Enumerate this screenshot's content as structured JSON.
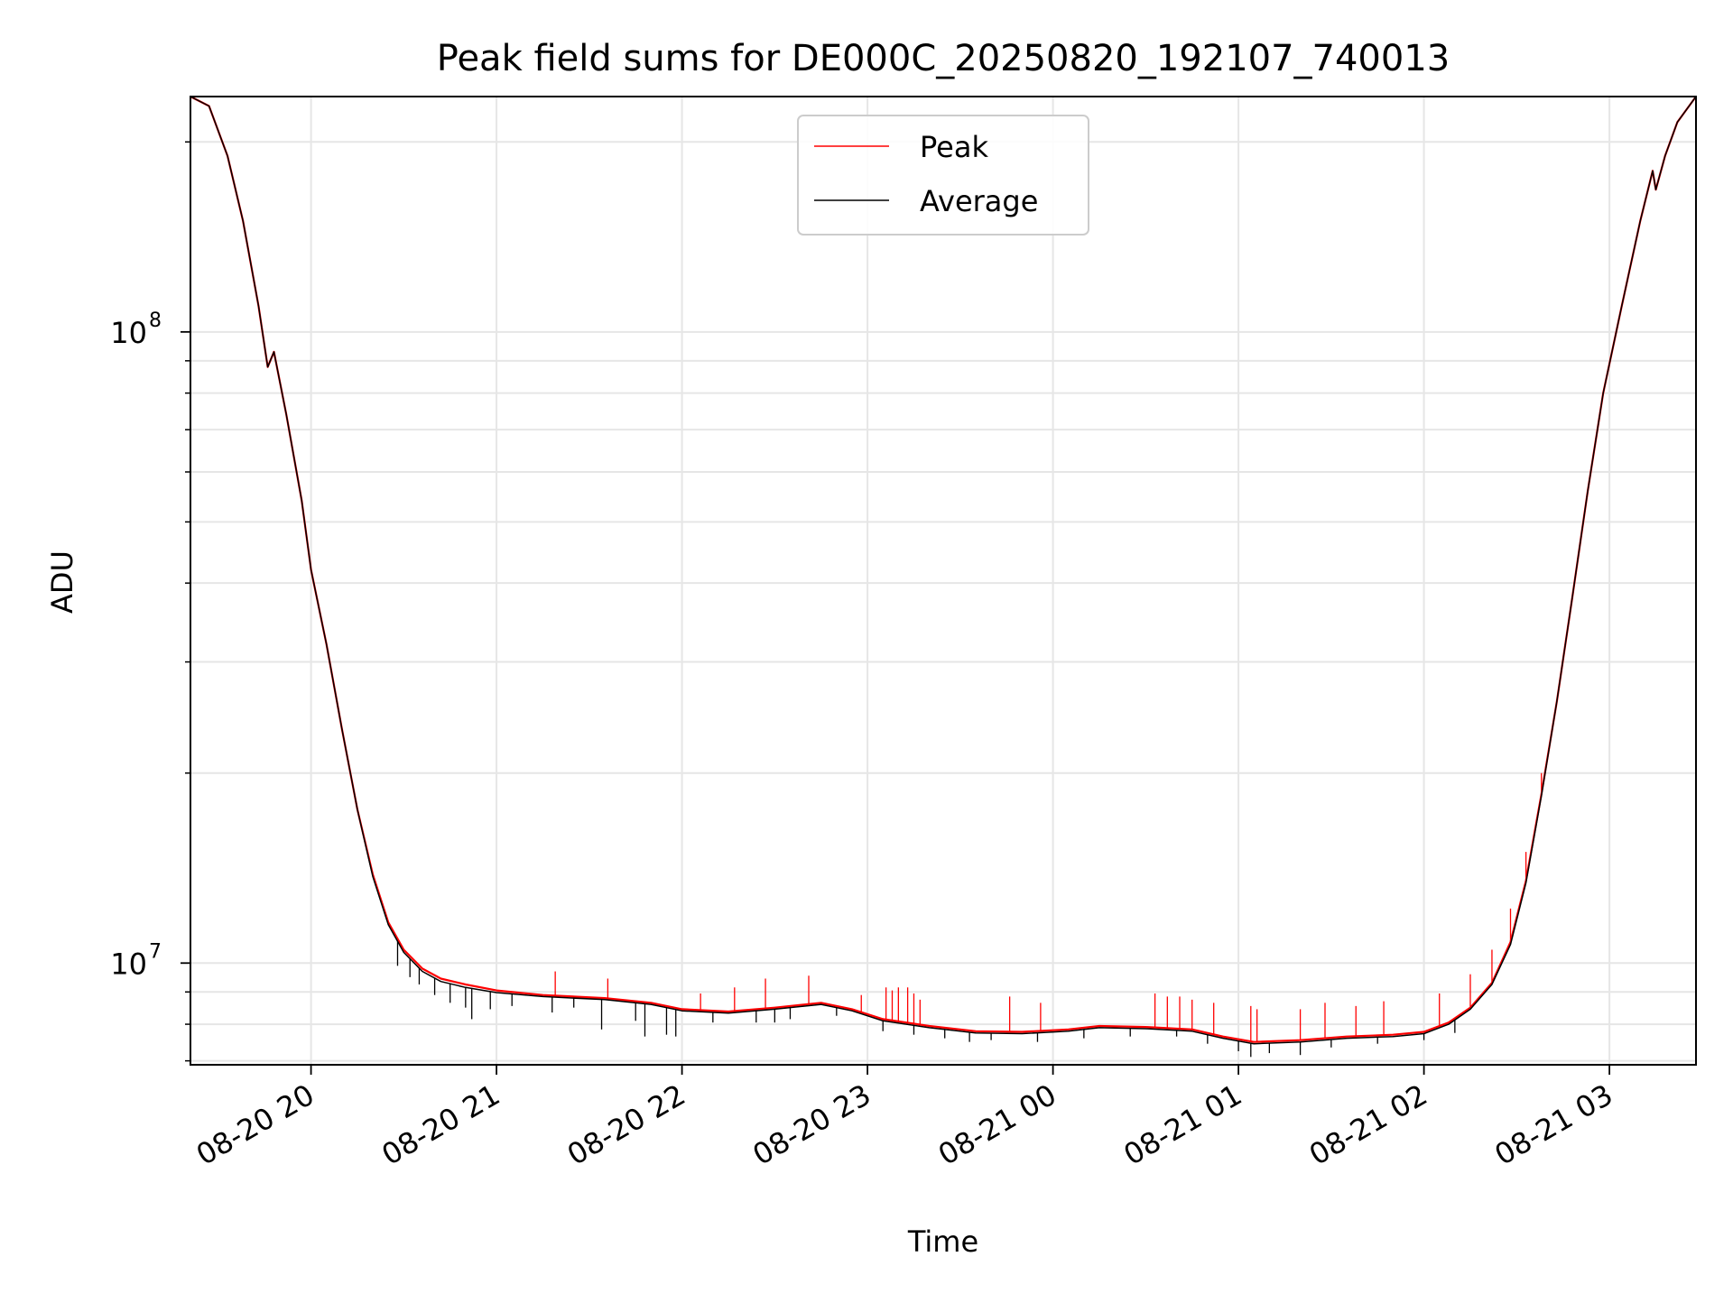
{
  "chart_data": {
    "type": "line",
    "title": "Peak field sums for DE000C_20250820_192107_740013",
    "xlabel": "Time",
    "ylabel": "ADU",
    "yscale": "log",
    "xlim": [
      "2025-08-20 19:21",
      "2025-08-21 03:28"
    ],
    "ylim": [
      6900000,
      236000000
    ],
    "x_ticks": [
      "08-20 20",
      "08-20 21",
      "08-20 22",
      "08-20 23",
      "08-21 00",
      "08-21 01",
      "08-21 02",
      "08-21 03"
    ],
    "y_major_ticks": [
      {
        "value": 10000000,
        "base": "10",
        "exp": "7"
      },
      {
        "value": 100000000,
        "base": "10",
        "exp": "8"
      }
    ],
    "grid": true,
    "legend_position": "top-center",
    "series": [
      {
        "name": "Peak",
        "color": "#ff0000",
        "points": [
          [
            "2025-08-20 19:21",
            236000000
          ],
          [
            "2025-08-20 19:27",
            228000000
          ],
          [
            "2025-08-20 19:33",
            190000000
          ],
          [
            "2025-08-20 19:38",
            150000000
          ],
          [
            "2025-08-20 19:43",
            110000000
          ],
          [
            "2025-08-20 19:46",
            88000000
          ],
          [
            "2025-08-20 19:48",
            93000000
          ],
          [
            "2025-08-20 19:52",
            74000000
          ],
          [
            "2025-08-20 19:57",
            54000000
          ],
          [
            "2025-08-20 20:00",
            42000000
          ],
          [
            "2025-08-20 20:05",
            32000000
          ],
          [
            "2025-08-20 20:10",
            23500000
          ],
          [
            "2025-08-20 20:15",
            17500000
          ],
          [
            "2025-08-20 20:20",
            13800000
          ],
          [
            "2025-08-20 20:25",
            11600000
          ],
          [
            "2025-08-20 20:30",
            10500000
          ],
          [
            "2025-08-20 20:36",
            9800000
          ],
          [
            "2025-08-20 20:42",
            9450000
          ],
          [
            "2025-08-20 20:50",
            9250000
          ],
          [
            "2025-08-20 21:00",
            9050000
          ],
          [
            "2025-08-20 21:15",
            8900000
          ],
          [
            "2025-08-20 21:35",
            8800000
          ],
          [
            "2025-08-20 21:50",
            8650000
          ],
          [
            "2025-08-20 22:00",
            8450000
          ],
          [
            "2025-08-20 22:15",
            8380000
          ],
          [
            "2025-08-20 22:30",
            8500000
          ],
          [
            "2025-08-20 22:45",
            8650000
          ],
          [
            "2025-08-20 22:55",
            8450000
          ],
          [
            "2025-08-20 23:05",
            8150000
          ],
          [
            "2025-08-20 23:20",
            7950000
          ],
          [
            "2025-08-20 23:35",
            7800000
          ],
          [
            "2025-08-20 23:50",
            7780000
          ],
          [
            "2025-08-21 00:05",
            7850000
          ],
          [
            "2025-08-21 00:15",
            7950000
          ],
          [
            "2025-08-21 00:30",
            7920000
          ],
          [
            "2025-08-21 00:45",
            7850000
          ],
          [
            "2025-08-21 00:55",
            7650000
          ],
          [
            "2025-08-21 01:05",
            7500000
          ],
          [
            "2025-08-21 01:20",
            7550000
          ],
          [
            "2025-08-21 01:35",
            7650000
          ],
          [
            "2025-08-21 01:50",
            7700000
          ],
          [
            "2025-08-21 02:00",
            7780000
          ],
          [
            "2025-08-21 02:08",
            8050000
          ],
          [
            "2025-08-21 02:15",
            8500000
          ],
          [
            "2025-08-21 02:22",
            9300000
          ],
          [
            "2025-08-21 02:28",
            10800000
          ],
          [
            "2025-08-21 02:33",
            13500000
          ],
          [
            "2025-08-21 02:38",
            18500000
          ],
          [
            "2025-08-21 02:43",
            26000000
          ],
          [
            "2025-08-21 02:48",
            38000000
          ],
          [
            "2025-08-21 02:53",
            56000000
          ],
          [
            "2025-08-21 02:58",
            80000000
          ],
          [
            "2025-08-21 03:04",
            110000000
          ],
          [
            "2025-08-21 03:10",
            150000000
          ],
          [
            "2025-08-21 03:14",
            180000000
          ],
          [
            "2025-08-21 03:15",
            168000000
          ],
          [
            "2025-08-21 03:18",
            190000000
          ],
          [
            "2025-08-21 03:22",
            215000000
          ],
          [
            "2025-08-21 03:28",
            236000000
          ]
        ],
        "spikes_up": [
          [
            "2025-08-20 21:19",
            9700000
          ],
          [
            "2025-08-20 21:36",
            9450000
          ],
          [
            "2025-08-20 22:06",
            8950000
          ],
          [
            "2025-08-20 22:17",
            9150000
          ],
          [
            "2025-08-20 22:27",
            9450000
          ],
          [
            "2025-08-20 22:41",
            9550000
          ],
          [
            "2025-08-20 22:58",
            8900000
          ],
          [
            "2025-08-20 23:06",
            9150000
          ],
          [
            "2025-08-20 23:08",
            9050000
          ],
          [
            "2025-08-20 23:10",
            9150000
          ],
          [
            "2025-08-20 23:13",
            9150000
          ],
          [
            "2025-08-20 23:15",
            8950000
          ],
          [
            "2025-08-20 23:17",
            8750000
          ],
          [
            "2025-08-20 23:46",
            8850000
          ],
          [
            "2025-08-20 23:56",
            8650000
          ],
          [
            "2025-08-21 00:33",
            8950000
          ],
          [
            "2025-08-21 00:37",
            8850000
          ],
          [
            "2025-08-21 00:41",
            8850000
          ],
          [
            "2025-08-21 00:45",
            8750000
          ],
          [
            "2025-08-21 00:52",
            8650000
          ],
          [
            "2025-08-21 01:04",
            8550000
          ],
          [
            "2025-08-21 01:06",
            8450000
          ],
          [
            "2025-08-21 01:20",
            8450000
          ],
          [
            "2025-08-21 01:28",
            8650000
          ],
          [
            "2025-08-21 01:38",
            8550000
          ],
          [
            "2025-08-21 01:47",
            8700000
          ],
          [
            "2025-08-21 02:05",
            8950000
          ],
          [
            "2025-08-21 02:15",
            9600000
          ],
          [
            "2025-08-21 02:22",
            10500000
          ],
          [
            "2025-08-21 02:28",
            12200000
          ],
          [
            "2025-08-21 02:33",
            15000000
          ],
          [
            "2025-08-21 02:38",
            20000000
          ]
        ]
      },
      {
        "name": "Average",
        "color": "#000000",
        "points": [
          [
            "2025-08-20 19:21",
            236000000
          ],
          [
            "2025-08-20 19:27",
            228000000
          ],
          [
            "2025-08-20 19:33",
            190000000
          ],
          [
            "2025-08-20 19:38",
            150000000
          ],
          [
            "2025-08-20 19:43",
            110000000
          ],
          [
            "2025-08-20 19:46",
            88000000
          ],
          [
            "2025-08-20 19:48",
            93000000
          ],
          [
            "2025-08-20 19:52",
            74000000
          ],
          [
            "2025-08-20 19:57",
            54000000
          ],
          [
            "2025-08-20 20:00",
            42000000
          ],
          [
            "2025-08-20 20:05",
            32000000
          ],
          [
            "2025-08-20 20:10",
            23500000
          ],
          [
            "2025-08-20 20:15",
            17500000
          ],
          [
            "2025-08-20 20:20",
            13700000
          ],
          [
            "2025-08-20 20:25",
            11500000
          ],
          [
            "2025-08-20 20:30",
            10400000
          ],
          [
            "2025-08-20 20:36",
            9700000
          ],
          [
            "2025-08-20 20:42",
            9350000
          ],
          [
            "2025-08-20 20:50",
            9150000
          ],
          [
            "2025-08-20 21:00",
            8980000
          ],
          [
            "2025-08-20 21:15",
            8850000
          ],
          [
            "2025-08-20 21:35",
            8750000
          ],
          [
            "2025-08-20 21:50",
            8600000
          ],
          [
            "2025-08-20 22:00",
            8400000
          ],
          [
            "2025-08-20 22:15",
            8330000
          ],
          [
            "2025-08-20 22:30",
            8450000
          ],
          [
            "2025-08-20 22:45",
            8600000
          ],
          [
            "2025-08-20 22:55",
            8400000
          ],
          [
            "2025-08-20 23:05",
            8100000
          ],
          [
            "2025-08-20 23:20",
            7900000
          ],
          [
            "2025-08-20 23:35",
            7750000
          ],
          [
            "2025-08-20 23:50",
            7730000
          ],
          [
            "2025-08-21 00:05",
            7800000
          ],
          [
            "2025-08-21 00:15",
            7900000
          ],
          [
            "2025-08-21 00:30",
            7870000
          ],
          [
            "2025-08-21 00:45",
            7800000
          ],
          [
            "2025-08-21 00:55",
            7600000
          ],
          [
            "2025-08-21 01:05",
            7450000
          ],
          [
            "2025-08-21 01:20",
            7500000
          ],
          [
            "2025-08-21 01:35",
            7600000
          ],
          [
            "2025-08-21 01:50",
            7650000
          ],
          [
            "2025-08-21 02:00",
            7730000
          ],
          [
            "2025-08-21 02:08",
            8000000
          ],
          [
            "2025-08-21 02:15",
            8450000
          ],
          [
            "2025-08-21 02:22",
            9250000
          ],
          [
            "2025-08-21 02:28",
            10700000
          ],
          [
            "2025-08-21 02:33",
            13400000
          ],
          [
            "2025-08-21 02:38",
            18400000
          ],
          [
            "2025-08-21 02:43",
            26000000
          ],
          [
            "2025-08-21 02:48",
            38000000
          ],
          [
            "2025-08-21 02:53",
            56000000
          ],
          [
            "2025-08-21 02:58",
            80000000
          ],
          [
            "2025-08-21 03:04",
            110000000
          ],
          [
            "2025-08-21 03:10",
            150000000
          ],
          [
            "2025-08-21 03:14",
            180000000
          ],
          [
            "2025-08-21 03:15",
            168000000
          ],
          [
            "2025-08-21 03:18",
            190000000
          ],
          [
            "2025-08-21 03:22",
            215000000
          ],
          [
            "2025-08-21 03:28",
            236000000
          ]
        ],
        "spikes_down": [
          [
            "2025-08-20 20:28",
            9900000
          ],
          [
            "2025-08-20 20:32",
            9500000
          ],
          [
            "2025-08-20 20:35",
            9250000
          ],
          [
            "2025-08-20 20:40",
            8900000
          ],
          [
            "2025-08-20 20:45",
            8650000
          ],
          [
            "2025-08-20 20:50",
            8500000
          ],
          [
            "2025-08-20 20:52",
            8150000
          ],
          [
            "2025-08-20 20:58",
            8450000
          ],
          [
            "2025-08-20 21:05",
            8550000
          ],
          [
            "2025-08-20 21:18",
            8350000
          ],
          [
            "2025-08-20 21:25",
            8500000
          ],
          [
            "2025-08-20 21:34",
            7850000
          ],
          [
            "2025-08-20 21:45",
            8100000
          ],
          [
            "2025-08-20 21:48",
            7650000
          ],
          [
            "2025-08-20 21:55",
            7700000
          ],
          [
            "2025-08-20 21:58",
            7650000
          ],
          [
            "2025-08-20 22:10",
            8050000
          ],
          [
            "2025-08-20 22:24",
            8050000
          ],
          [
            "2025-08-20 22:30",
            8050000
          ],
          [
            "2025-08-20 22:35",
            8150000
          ],
          [
            "2025-08-20 22:50",
            8250000
          ],
          [
            "2025-08-20 23:05",
            7800000
          ],
          [
            "2025-08-20 23:15",
            7700000
          ],
          [
            "2025-08-20 23:25",
            7600000
          ],
          [
            "2025-08-20 23:33",
            7500000
          ],
          [
            "2025-08-20 23:40",
            7550000
          ],
          [
            "2025-08-20 23:55",
            7500000
          ],
          [
            "2025-08-21 00:10",
            7600000
          ],
          [
            "2025-08-21 00:25",
            7650000
          ],
          [
            "2025-08-21 00:40",
            7650000
          ],
          [
            "2025-08-21 00:50",
            7450000
          ],
          [
            "2025-08-21 01:00",
            7250000
          ],
          [
            "2025-08-21 01:04",
            7100000
          ],
          [
            "2025-08-21 01:10",
            7200000
          ],
          [
            "2025-08-21 01:20",
            7150000
          ],
          [
            "2025-08-21 01:30",
            7350000
          ],
          [
            "2025-08-21 01:45",
            7450000
          ],
          [
            "2025-08-21 02:00",
            7550000
          ],
          [
            "2025-08-21 02:10",
            7750000
          ]
        ]
      }
    ]
  }
}
